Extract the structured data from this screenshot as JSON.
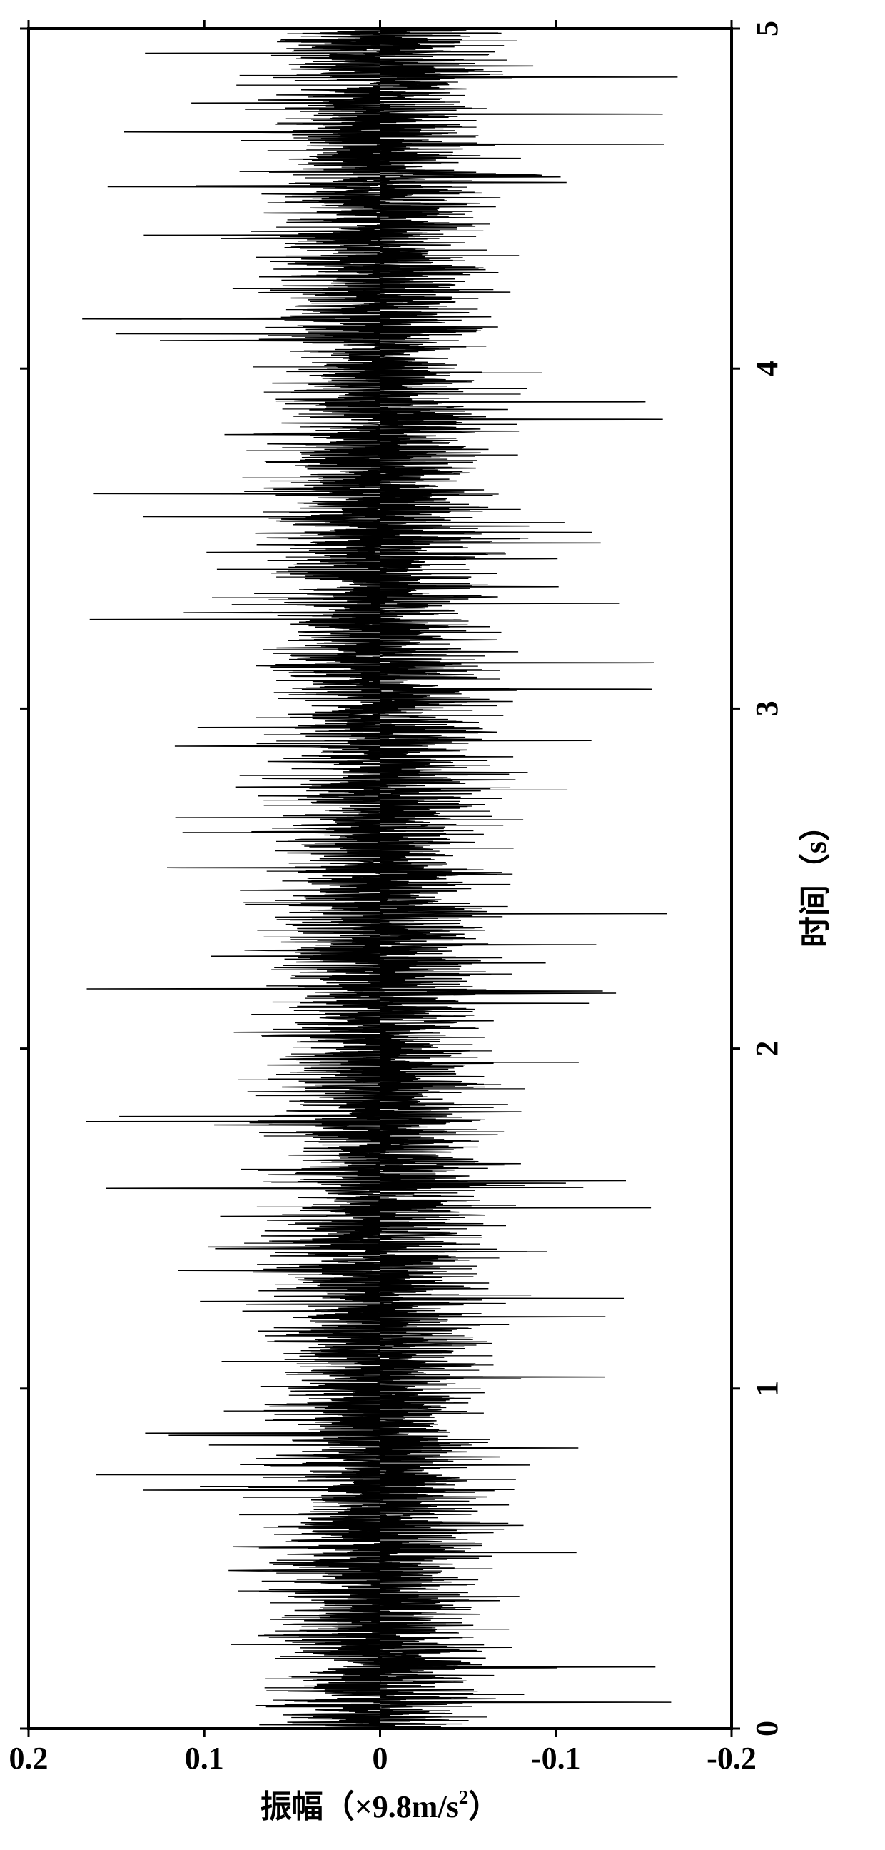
{
  "chart": {
    "type": "line",
    "orientation": "rotated-90-ccw",
    "background_color": "#ffffff",
    "line_color": "#000000",
    "axis_color": "#000000",
    "text_color": "#000000",
    "border_width": 4,
    "tick_length": 12,
    "tick_width": 3,
    "axis_label_fontsize": 44,
    "tick_label_fontsize": 44,
    "axis_label_fontweight": "bold",
    "tick_label_fontweight": "bold",
    "x_axis": {
      "label": "时间（s）",
      "min": 0,
      "max": 5,
      "ticks": [
        0,
        1,
        2,
        3,
        4,
        5
      ]
    },
    "y_axis": {
      "label_main": "振幅（×9.8m/s",
      "label_super": "2",
      "label_close": "）",
      "min": -0.2,
      "max": 0.2,
      "ticks": [
        -0.2,
        -0.1,
        0,
        0.1,
        0.2
      ]
    },
    "signal": {
      "noise_seed": 42,
      "num_points": 4000,
      "base_amplitude": 0.055,
      "spike_probability": 0.015,
      "spike_amplitude": 0.17,
      "time_range": [
        0,
        5
      ]
    }
  }
}
